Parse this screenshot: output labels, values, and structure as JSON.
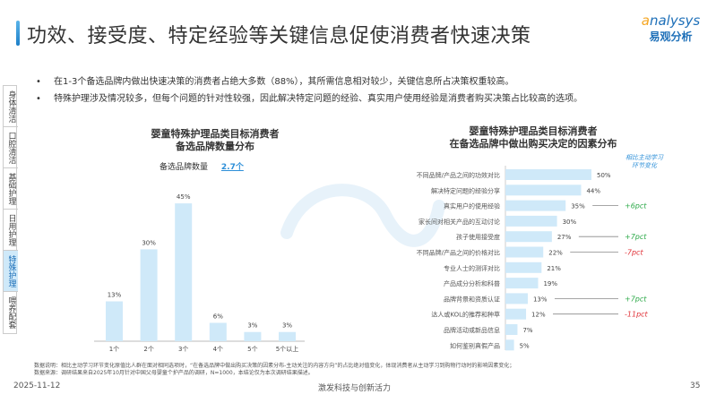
{
  "header": {
    "title": "功效、接受度、特定经验等关键信息促使消费者快速决策",
    "logo_en": "nalysys",
    "logo_en_initial": "a",
    "logo_cn": "易观分析"
  },
  "bullets": [
    "在1-3个备选品牌内做出快速决策的消费者占绝大多数（88%），其所需信息相对较少，关键信息所占决策权重较高。",
    "特殊护理涉及情况较多，但每个问题的针对性较强，因此解决特定问题的经验、真实用户使用经验是消费者购买决策占比较高的选项。"
  ],
  "sidenav": [
    {
      "label": "身体清洁",
      "active": false
    },
    {
      "label": "口腔清洁",
      "active": false
    },
    {
      "label": "基础护理",
      "active": false
    },
    {
      "label": "日用护理",
      "active": false
    },
    {
      "label": "特殊护理",
      "active": true
    },
    {
      "label": "喂养配套",
      "active": false
    }
  ],
  "watermark": "nalysys 易观分析",
  "chart_data": [
    {
      "type": "bar",
      "title": "婴童特殊护理品类目标消费者\n备选品牌数量分布",
      "title_lines": [
        "婴童特殊护理品类目标消费者",
        "备选品牌数量分布"
      ],
      "annotation_label": "备选品牌数量",
      "annotation_value": "2.7个",
      "categories": [
        "1个",
        "2个",
        "3个",
        "4个",
        "5个",
        "5个以上"
      ],
      "values": [
        13,
        30,
        45,
        6,
        3,
        3
      ],
      "labels": [
        "13%",
        "30%",
        "45%",
        "6%",
        "3%",
        "3%"
      ],
      "color": "#cfe9f9",
      "accent": "#2d8fd8"
    },
    {
      "type": "bar",
      "orientation": "horizontal",
      "title_lines": [
        "婴童特殊护理品类目标消费者",
        "在备选品牌中做出购买决定的因素分布"
      ],
      "change_header": "相比主动学习\n环节变化",
      "change_header_lines": [
        "相比主动学习",
        "环节变化"
      ],
      "categories": [
        "不同品牌/产品之间的功效对比",
        "解决特定问题的经验分享",
        "真实用户的使用经验",
        "家长间对相关产品的互动讨论",
        "孩子使用接受度",
        "不同品牌/产品之间的价格对比",
        "专业人士的测评对比",
        "产品成分分析和科普",
        "品牌背景和资质认证",
        "达人或KOL的推荐和种草",
        "品牌活动或新品信息",
        "如何鉴别真假产品"
      ],
      "values": [
        50,
        44,
        35,
        30,
        27,
        22,
        21,
        19,
        13,
        12,
        7,
        5
      ],
      "labels": [
        "50%",
        "44%",
        "35%",
        "30%",
        "27%",
        "22%",
        "21%",
        "19%",
        "13%",
        "12%",
        "7%",
        "5%"
      ],
      "changes": [
        "",
        "",
        "+6pct",
        "",
        "+7pct",
        "-7pct",
        "",
        "",
        "+7pct",
        "-11pct",
        "",
        ""
      ],
      "positive_color": "#2eaa4a",
      "negative_color": "#e0343a",
      "color": "#cfe9f9"
    }
  ],
  "footer": {
    "note": "数据说明：相比主动学习环节变化原值比人群在面对相同选项时，“在备选品牌中做出购买决策的因素分布-主动关注的内容方向”的占比绝对值变化，体现消费者从主动学习到购物行动时的影响因素变化；",
    "source": "数据来源：调研结果来自2025年10月针对中国父母婴童个护产品的调研，N=1000，本结论仅为本次调研结果描述。",
    "date": "2025-11-12",
    "slogan": "激发科技与创新活力",
    "page": "35"
  }
}
